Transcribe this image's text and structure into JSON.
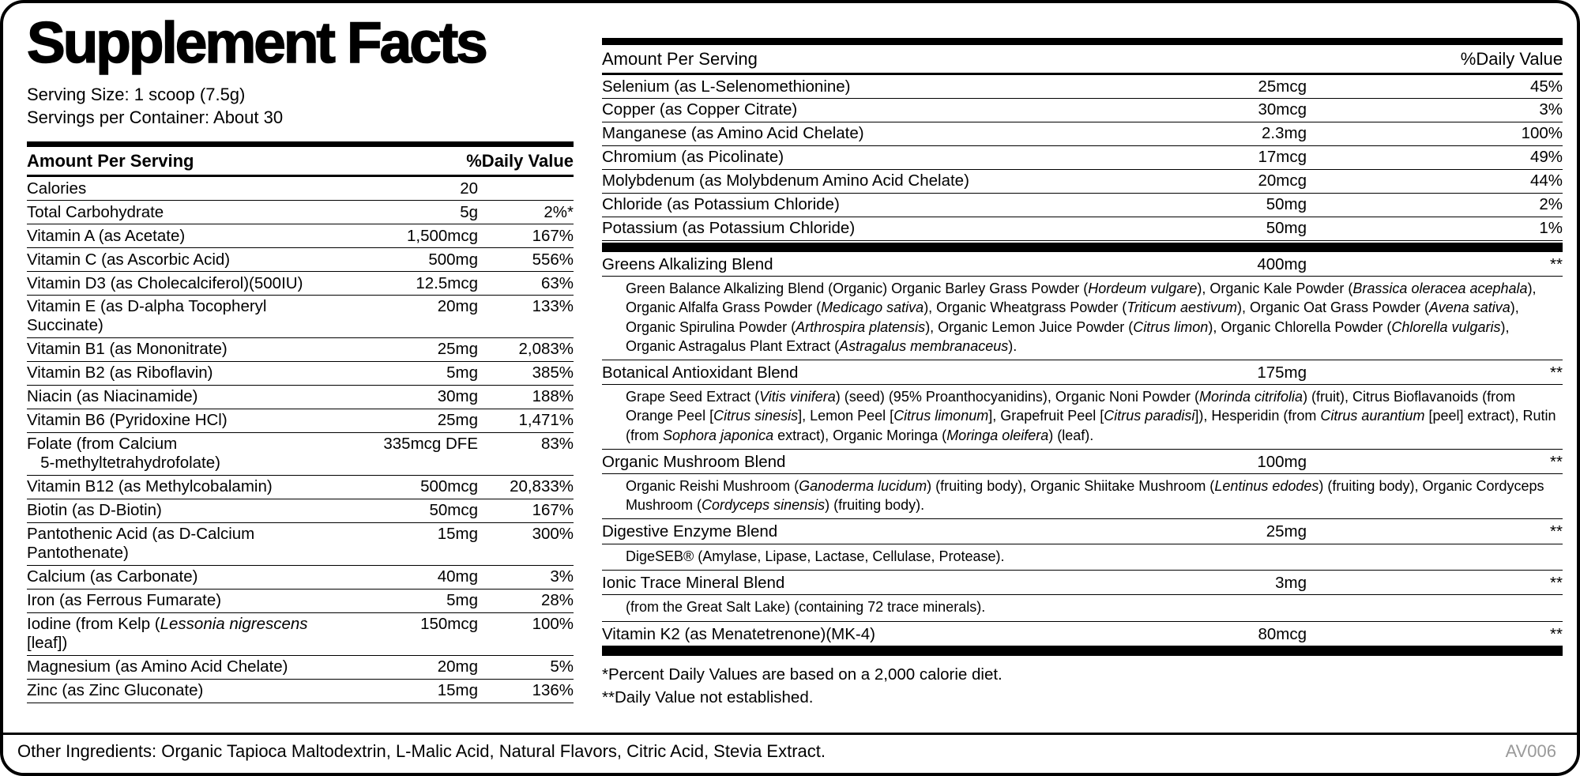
{
  "label": {
    "title": "Supplement Facts",
    "serving_size": "Serving Size: 1 scoop (7.5g)",
    "servings_per_container": "Servings per Container: About 30",
    "footnotes": [
      "*Percent Daily Values are based on a 2,000 calorie diet.",
      "**Daily Value not established."
    ],
    "footer": {
      "other_ingredients": "Other Ingredients: Organic Tapioca Maltodextrin, L-Malic Acid, Natural Flavors, Citric Acid, Stevia Extract.",
      "code": "AV006"
    },
    "colors": {
      "ink": "#000000",
      "code_gray": "#9a9a9a",
      "paper": "#ffffff"
    }
  },
  "left_table": {
    "header": {
      "amount": "Amount Per Serving",
      "dv": "%Daily Value"
    },
    "rows": [
      {
        "name": "Calories",
        "amount": "20",
        "dv": ""
      },
      {
        "name": "Total Carbohydrate",
        "amount": "5g",
        "dv": "2%*"
      },
      {
        "name": "Vitamin A (as Acetate)",
        "amount": "1,500mcg",
        "dv": "167%"
      },
      {
        "name": "Vitamin C (as Ascorbic Acid)",
        "amount": "500mg",
        "dv": "556%"
      },
      {
        "name": "Vitamin D3 (as Cholecalciferol)(500IU)",
        "amount": "12.5mcg",
        "dv": "63%"
      },
      {
        "name": "Vitamin E (as D-alpha Tocopheryl Succinate)",
        "amount": "20mg",
        "dv": "133%"
      },
      {
        "name": "Vitamin B1 (as Mononitrate)",
        "amount": "25mg",
        "dv": "2,083%"
      },
      {
        "name": "Vitamin B2 (as Riboflavin)",
        "amount": "5mg",
        "dv": "385%"
      },
      {
        "name": "Niacin (as Niacinamide)",
        "amount": "30mg",
        "dv": "188%"
      },
      {
        "name": "Vitamin B6 (Pyridoxine HCl)",
        "amount": "25mg",
        "dv": "1,471%"
      },
      {
        "name": "Folate (from Calcium\n   5-methyltetrahydrofolate)",
        "amount": "335mcg DFE",
        "dv": "83%"
      },
      {
        "name": "Vitamin B12 (as Methylcobalamin)",
        "amount": "500mcg",
        "dv": "20,833%"
      },
      {
        "name": "Biotin (as D-Biotin)",
        "amount": "50mcg",
        "dv": "167%"
      },
      {
        "name": "Pantothenic Acid (as D-Calcium Pantothenate)",
        "amount": "15mg",
        "dv": "300%"
      },
      {
        "name": "Calcium (as Carbonate)",
        "amount": "40mg",
        "dv": "3%"
      },
      {
        "name": "Iron (as Ferrous Fumarate)",
        "amount": "5mg",
        "dv": "28%"
      },
      {
        "name": "Iodine (from Kelp (Lessonia nigrescens [leaf])",
        "name_parts": [
          {
            "t": "Iodine (from Kelp ("
          },
          {
            "t": "Lessonia nigrescens",
            "i": true
          },
          {
            "t": " [leaf])"
          }
        ],
        "amount": "150mcg",
        "dv": "100%"
      },
      {
        "name": "Magnesium (as Amino Acid Chelate)",
        "amount": "20mg",
        "dv": "5%"
      },
      {
        "name": "Zinc (as Zinc Gluconate)",
        "amount": "15mg",
        "dv": "136%"
      }
    ]
  },
  "right_table": {
    "header": {
      "amount": "Amount Per Serving",
      "dv": "%Daily Value"
    },
    "rows": [
      {
        "name": "Selenium (as L-Selenomethionine)",
        "amount": "25mcg",
        "dv": "45%"
      },
      {
        "name": "Copper (as Copper Citrate)",
        "amount": "30mcg",
        "dv": "3%"
      },
      {
        "name": "Manganese (as Amino Acid Chelate)",
        "amount": "2.3mg",
        "dv": "100%"
      },
      {
        "name": "Chromium (as Picolinate)",
        "amount": "17mcg",
        "dv": "49%"
      },
      {
        "name": "Molybdenum (as Molybdenum Amino Acid Chelate)",
        "amount": "20mcg",
        "dv": "44%"
      },
      {
        "name": "Chloride (as Potassium Chloride)",
        "amount": "50mg",
        "dv": "2%"
      },
      {
        "name": "Potassium (as Potassium Chloride)",
        "amount": "50mg",
        "dv": "1%"
      }
    ],
    "blends": [
      {
        "name": "Greens Alkalizing Blend",
        "amount": "400mg",
        "dv": "**",
        "desc_parts": [
          {
            "t": "Green Balance Alkalizing Blend (Organic) Organic Barley Grass Powder ("
          },
          {
            "t": "Hordeum vulgare",
            "i": true
          },
          {
            "t": "), Organic Kale Powder ("
          },
          {
            "t": "Brassica oleracea acephala",
            "i": true
          },
          {
            "t": "), Organic Alfalfa Grass Powder ("
          },
          {
            "t": "Medicago sativa",
            "i": true
          },
          {
            "t": "), Organic Wheatgrass Powder ("
          },
          {
            "t": "Triticum aestivum",
            "i": true
          },
          {
            "t": "), Organic Oat Grass Powder ("
          },
          {
            "t": "Avena sativa",
            "i": true
          },
          {
            "t": "), Organic Spirulina Powder ("
          },
          {
            "t": "Arthrospira platensis",
            "i": true
          },
          {
            "t": "), Organic Lemon Juice Powder ("
          },
          {
            "t": "Citrus limon",
            "i": true
          },
          {
            "t": "), Organic Chlorella Powder ("
          },
          {
            "t": "Chlorella vulgaris",
            "i": true
          },
          {
            "t": "), Organic Astragalus Plant Extract ("
          },
          {
            "t": "Astragalus membranaceus",
            "i": true
          },
          {
            "t": ")."
          }
        ]
      },
      {
        "name": "Botanical Antioxidant Blend",
        "amount": "175mg",
        "dv": "**",
        "desc_parts": [
          {
            "t": "Grape Seed Extract ("
          },
          {
            "t": "Vitis vinifera",
            "i": true
          },
          {
            "t": ") (seed) (95% Proanthocyanidins), Organic Noni Powder ("
          },
          {
            "t": "Morinda citrifolia",
            "i": true
          },
          {
            "t": ") (fruit), Citrus Bioflavanoids (from Orange Peel ["
          },
          {
            "t": "Citrus sinesis",
            "i": true
          },
          {
            "t": "], Lemon Peel ["
          },
          {
            "t": "Citrus limonum",
            "i": true
          },
          {
            "t": "], Grapefruit Peel ["
          },
          {
            "t": "Citrus paradisi",
            "i": true
          },
          {
            "t": "]), Hesperidin (from "
          },
          {
            "t": "Citrus aurantium",
            "i": true
          },
          {
            "t": " [peel] extract), Rutin (from "
          },
          {
            "t": "Sophora japonica",
            "i": true
          },
          {
            "t": " extract), Organic Moringa ("
          },
          {
            "t": "Moringa oleifera",
            "i": true
          },
          {
            "t": ") (leaf)."
          }
        ]
      },
      {
        "name": "Organic Mushroom Blend",
        "amount": "100mg",
        "dv": "**",
        "desc_parts": [
          {
            "t": "Organic Reishi Mushroom ("
          },
          {
            "t": "Ganoderma lucidum",
            "i": true
          },
          {
            "t": ") (fruiting body), Organic Shiitake Mushroom ("
          },
          {
            "t": "Lentinus edodes",
            "i": true
          },
          {
            "t": ") (fruiting body), Organic Cordyceps Mushroom ("
          },
          {
            "t": "Cordyceps sinensis",
            "i": true
          },
          {
            "t": ") (fruiting body)."
          }
        ]
      },
      {
        "name": "Digestive Enzyme Blend",
        "amount": "25mg",
        "dv": "**",
        "desc_parts": [
          {
            "t": "DigeSEB® (Amylase, Lipase, Lactase, Cellulase, Protease)."
          }
        ]
      },
      {
        "name": "Ionic Trace Mineral Blend",
        "amount": "3mg",
        "dv": "**",
        "desc_parts": [
          {
            "t": "(from the Great Salt Lake) (containing 72 trace minerals)."
          }
        ]
      },
      {
        "name": "Vitamin K2 (as Menatetrenone)(MK-4)",
        "amount": "80mcg",
        "dv": "**"
      }
    ]
  }
}
